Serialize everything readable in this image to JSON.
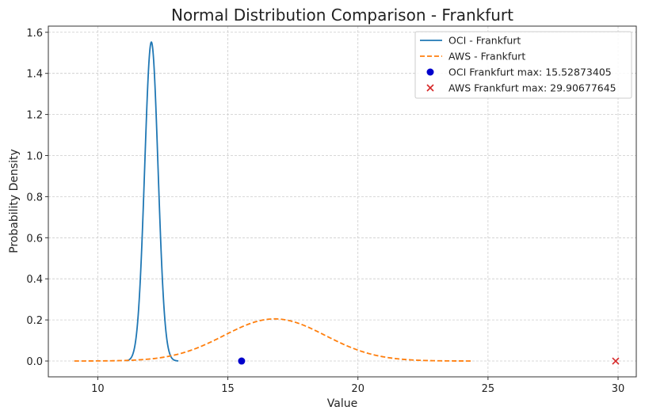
{
  "chart_data": {
    "type": "line",
    "title": "Normal Distribution Comparison - Frankfurt",
    "xlabel": "Value",
    "ylabel": "Probability Density",
    "xlim": [
      8.1,
      30.7
    ],
    "ylim": [
      -0.077,
      1.63
    ],
    "xticks": [
      10,
      15,
      20,
      25,
      30
    ],
    "yticks": [
      0.0,
      0.2,
      0.4,
      0.6,
      0.8,
      1.0,
      1.2,
      1.4,
      1.6
    ],
    "ytick_labels": [
      "0.0",
      "0.2",
      "0.4",
      "0.6",
      "0.8",
      "1.0",
      "1.2",
      "1.4",
      "1.6"
    ],
    "grid": true,
    "legend_position": "top-right",
    "series": [
      {
        "name": "OCI - Frankfurt",
        "kind": "normal-pdf",
        "mean": 12.06,
        "std": 0.257,
        "x_range": [
          11.1,
          13.1
        ],
        "color": "#1f77b4",
        "style": "solid"
      },
      {
        "name": "AWS - Frankfurt",
        "kind": "normal-pdf",
        "mean": 16.8,
        "std": 1.946,
        "x_range": [
          9.1,
          24.4
        ],
        "color": "#ff7f0e",
        "style": "dashed"
      }
    ],
    "points": [
      {
        "name": "OCI Frankfurt max: 15.52873405",
        "x": 15.52873405,
        "y": 0,
        "marker": "circle",
        "color": "#0000cc"
      },
      {
        "name": "AWS Frankfurt max: 29.90677645",
        "x": 29.90677645,
        "y": 0,
        "marker": "x",
        "color": "#d62728"
      }
    ]
  }
}
